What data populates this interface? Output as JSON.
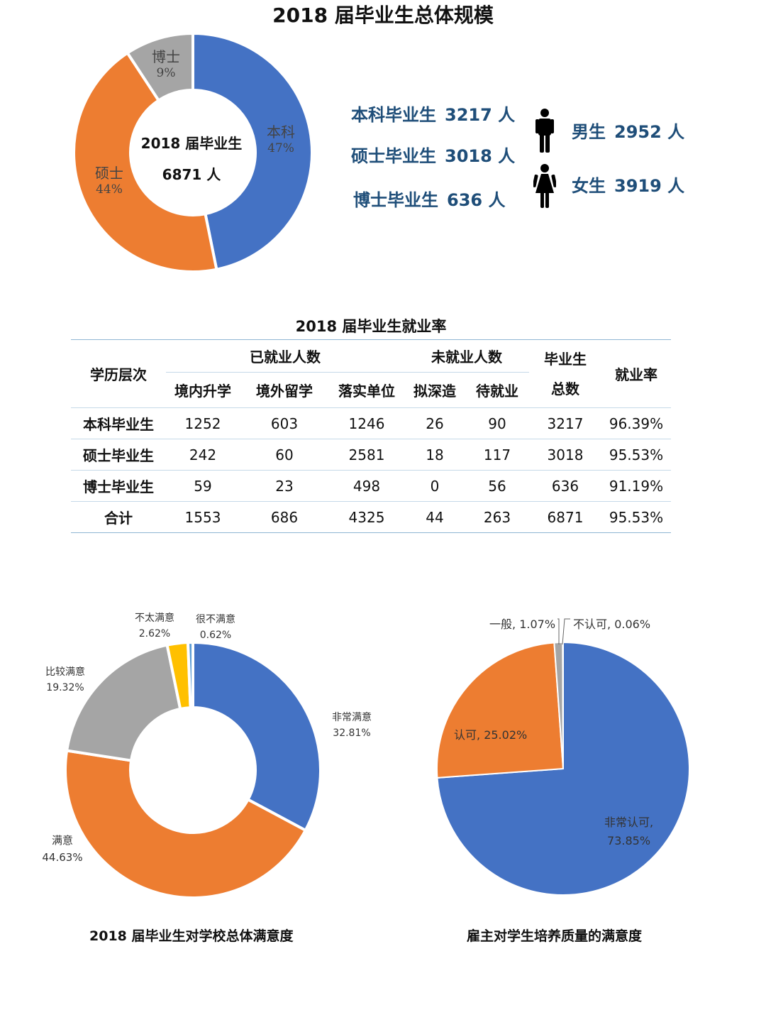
{
  "title": "2018 届毕业生总体规模",
  "center": {
    "line1": "2018 届毕业生",
    "line2": "6871 人"
  },
  "scale_stats": [
    {
      "label": "本科毕业生",
      "value": "3217 人"
    },
    {
      "label": "硕士毕业生",
      "value": "3018 人"
    },
    {
      "label": "博士毕业生",
      "value": "636 人"
    }
  ],
  "gender_stats": [
    {
      "label": "男生",
      "value": "2952 人",
      "icon": "male-icon"
    },
    {
      "label": "女生",
      "value": "3919 人",
      "icon": "female-icon"
    }
  ],
  "colors": {
    "blue": "#4472C4",
    "orange": "#ED7D31",
    "gray": "#A5A5A5",
    "yellow": "#FFC000",
    "lightblue": "#5B9BD5",
    "navy": "#1f4e79"
  },
  "table": {
    "title": "2018 届毕业生就业率",
    "header_level": "学历层次",
    "group_employed": "已就业人数",
    "group_unemployed": "未就业人数",
    "header_total_1": "毕业生",
    "header_total_2": "总数",
    "header_rate": "就业率",
    "subheaders": [
      "境内升学",
      "境外留学",
      "落实单位",
      "拟深造",
      "待就业"
    ],
    "rows": [
      {
        "label": "本科毕业生",
        "cells": [
          "1252",
          "603",
          "1246",
          "26",
          "90",
          "3217",
          "96.39%"
        ]
      },
      {
        "label": "硕士毕业生",
        "cells": [
          "242",
          "60",
          "2581",
          "18",
          "117",
          "3018",
          "95.53%"
        ]
      },
      {
        "label": "博士毕业生",
        "cells": [
          "59",
          "23",
          "498",
          "0",
          "56",
          "636",
          "91.19%"
        ]
      },
      {
        "label": "合计",
        "cells": [
          "1553",
          "686",
          "4325",
          "44",
          "263",
          "6871",
          "95.53%"
        ]
      }
    ]
  },
  "chart_data": [
    {
      "type": "pie",
      "variant": "donut",
      "title": "2018 届毕业生总体规模",
      "slices": [
        {
          "name": "本科",
          "label": "47%",
          "value": 3217,
          "color": "#4472C4"
        },
        {
          "name": "硕士",
          "label": "44%",
          "value": 3018,
          "color": "#ED7D31"
        },
        {
          "name": "博士",
          "label": "9%",
          "value": 636,
          "color": "#A5A5A5"
        }
      ]
    },
    {
      "type": "pie",
      "variant": "donut",
      "title": "2018 届毕业生对学校总体满意度",
      "slices": [
        {
          "name": "非常满意",
          "label": "32.81%",
          "value": 32.81,
          "color": "#4472C4"
        },
        {
          "name": "满意",
          "label": "44.63%",
          "value": 44.63,
          "color": "#ED7D31"
        },
        {
          "name": "比较满意",
          "label": "19.32%",
          "value": 19.32,
          "color": "#A5A5A5"
        },
        {
          "name": "不太满意",
          "label": "2.62%",
          "value": 2.62,
          "color": "#FFC000"
        },
        {
          "name": "很不满意",
          "label": "0.62%",
          "value": 0.62,
          "color": "#5B9BD5"
        }
      ]
    },
    {
      "type": "pie",
      "title": "雇主对学生培养质量的满意度",
      "slices": [
        {
          "name": "非常认可",
          "label": "73.85%",
          "value": 73.85,
          "color": "#4472C4"
        },
        {
          "name": "认可",
          "label": "25.02%",
          "value": 25.02,
          "color": "#ED7D31"
        },
        {
          "name": "一般",
          "label": "1.07%",
          "value": 1.07,
          "color": "#A5A5A5"
        },
        {
          "name": "不认可",
          "label": "0.06%",
          "value": 0.06,
          "color": "#FFC000"
        }
      ]
    }
  ]
}
